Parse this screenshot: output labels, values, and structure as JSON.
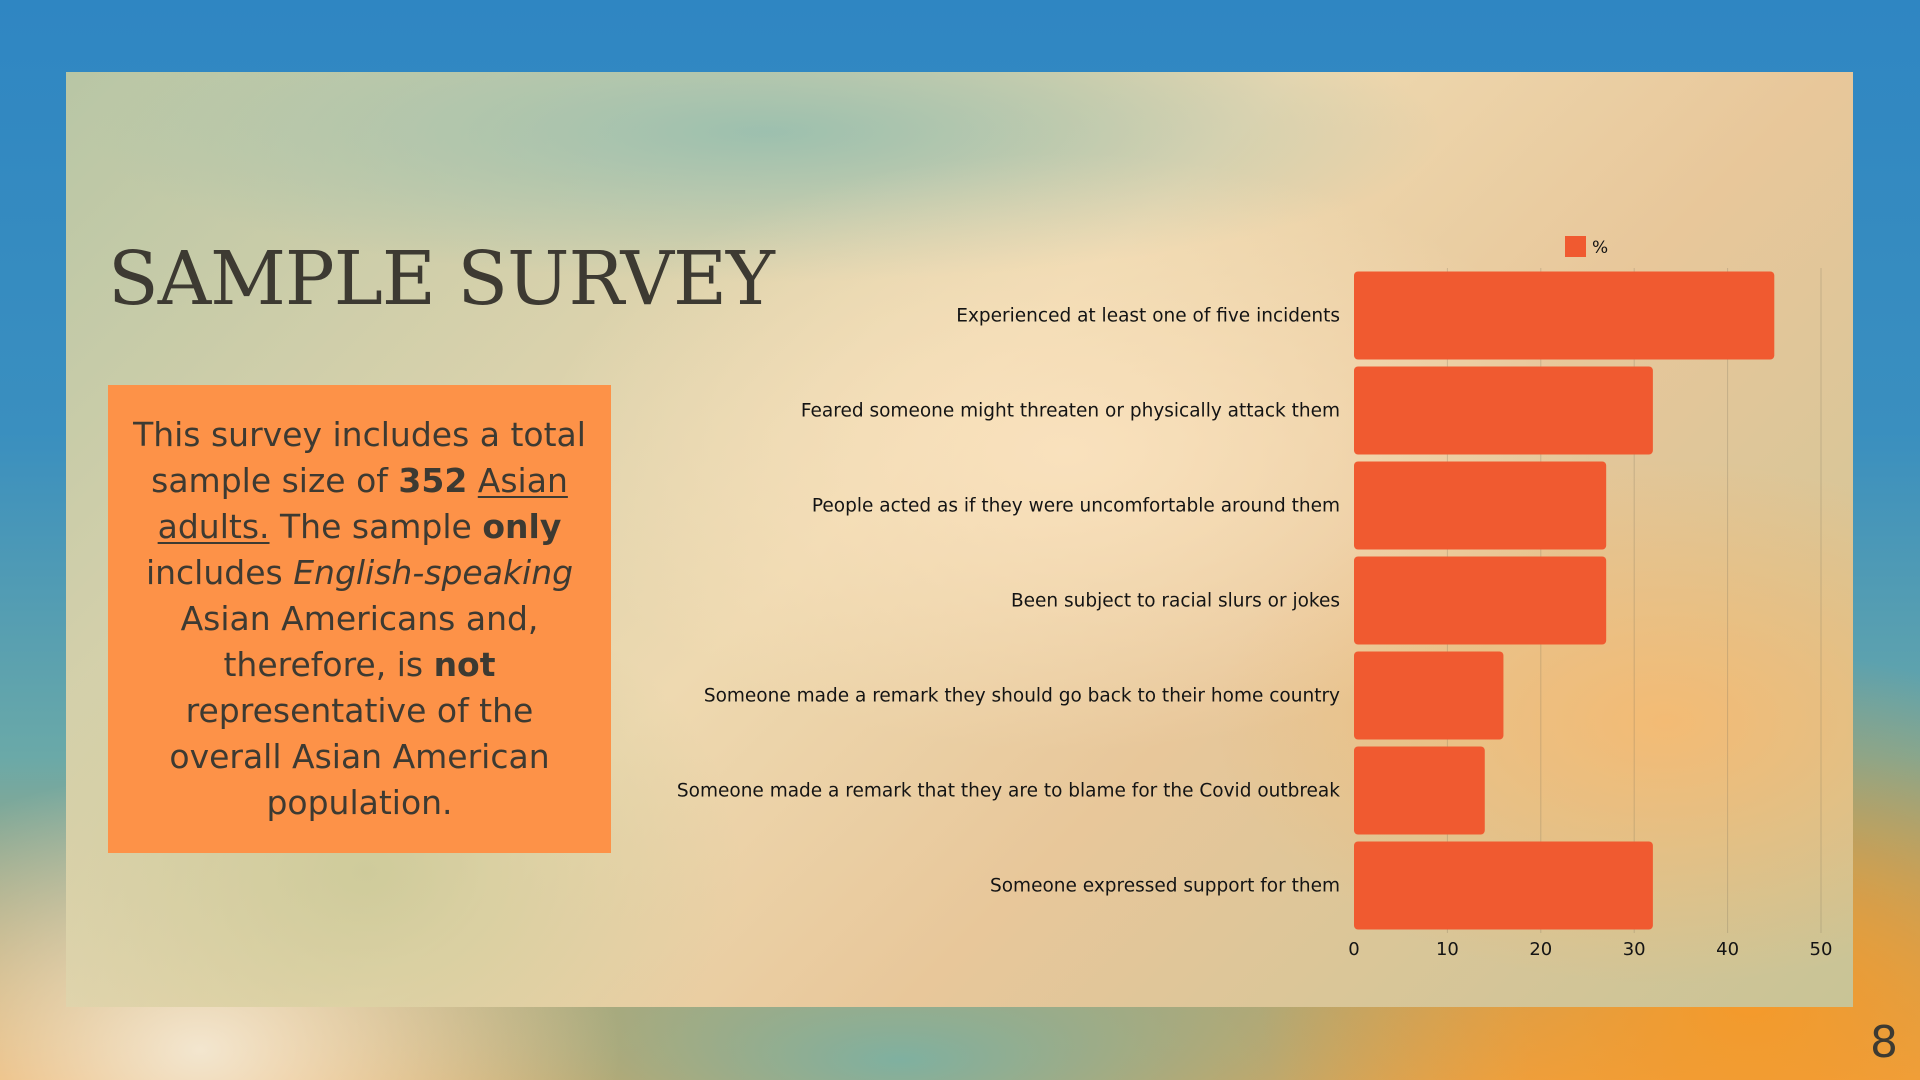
{
  "slide": {
    "title": "SAMPLE SURVEY",
    "page_number": "8",
    "info": {
      "t1": "This survey includes a total sample size of ",
      "t2": "352",
      "t3": " ",
      "t4": "Asian adults.",
      "t5": " The sample ",
      "t6": "only",
      "t7": " includes ",
      "t8": "English-speaking",
      "t9": " Asian Americans and, therefore, is ",
      "t10": "not",
      "t11": " representative of the overall Asian American population."
    }
  },
  "chart_data": {
    "type": "bar",
    "orientation": "horizontal",
    "categories": [
      "Experienced at least one of five incidents",
      "Feared someone might threaten or physically attack them",
      "People acted as if they were uncomfortable around them",
      "Been subject to racial slurs or jokes",
      "Someone made a remark they should go back to their home country",
      "Someone made a remark that they are to blame for the Covid outbreak",
      "Someone expressed support for them"
    ],
    "series": [
      {
        "name": "%",
        "values": [
          45,
          32,
          27,
          27,
          16,
          14,
          32
        ]
      }
    ],
    "xlim": [
      0,
      50
    ],
    "xticks": [
      "0",
      "10",
      "20",
      "30",
      "40",
      "50"
    ],
    "grid": "vertical",
    "legend": "top-center",
    "bar_color": "#f05a30"
  }
}
